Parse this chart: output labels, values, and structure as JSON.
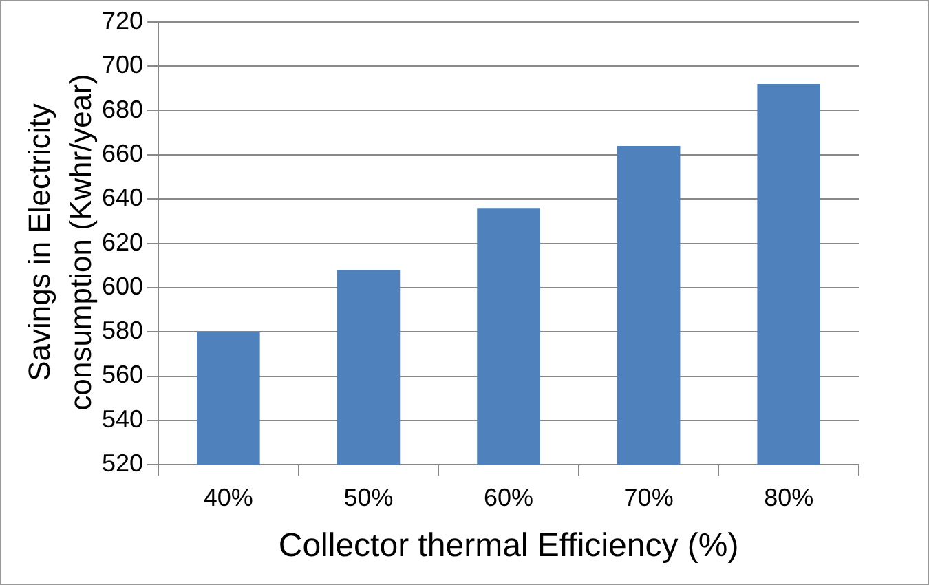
{
  "chart_data": {
    "type": "bar",
    "xlabel": "Collector thermal Efficiency (%)",
    "ylabel": "Savings in Electricity consumption (Kwhr/year)",
    "categories": [
      "40%",
      "50%",
      "60%",
      "70%",
      "80%"
    ],
    "values": [
      580,
      608,
      636,
      664,
      692
    ],
    "color": "#4f81bd",
    "ylim": [
      520,
      720
    ],
    "yticks": [
      520,
      540,
      560,
      580,
      600,
      620,
      640,
      660,
      680,
      700,
      720
    ],
    "grid": "y"
  }
}
